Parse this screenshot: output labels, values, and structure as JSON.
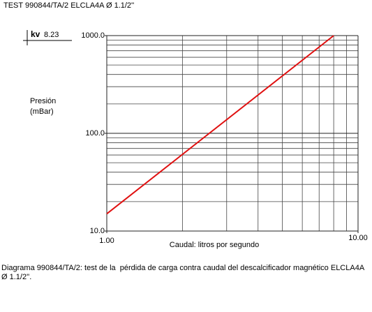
{
  "header": "TEST 990844/TA/2 ELCLA4A Ø 1.1/2''",
  "kv": {
    "label": "kv",
    "value": "8.23"
  },
  "chart_data": {
    "type": "line",
    "ylabel": [
      "Presión",
      "(mBar)"
    ],
    "xlabel": "Caudal: litros por segundo",
    "x": [
      1,
      8
    ],
    "series": [
      {
        "color": "#e01010",
        "values": [
          15,
          1000
        ]
      }
    ],
    "xscale": "log",
    "yscale": "log",
    "xlim": [
      1,
      10
    ],
    "ylim": [
      10,
      1000
    ],
    "xticks": [
      {
        "value": 1,
        "label": "1.00"
      },
      {
        "value": 10,
        "label": "10.00"
      }
    ],
    "yticks": [
      {
        "value": 10,
        "label": "10.0"
      },
      {
        "value": 100,
        "label": "100.0"
      },
      {
        "value": 1000,
        "label": "1000.0"
      }
    ],
    "xgrid": [
      2,
      3,
      4,
      5,
      6,
      7,
      8,
      9
    ],
    "ygrid": [
      20,
      30,
      40,
      50,
      60,
      70,
      80,
      90,
      200,
      300,
      400,
      500,
      600,
      700,
      800,
      900
    ],
    "grid": true
  },
  "caption": "Diagrama 990844/TA/2: test de la  pérdida de carga contra caudal del descalcificador magnético ELCLA4A Ø 1.1/2''."
}
